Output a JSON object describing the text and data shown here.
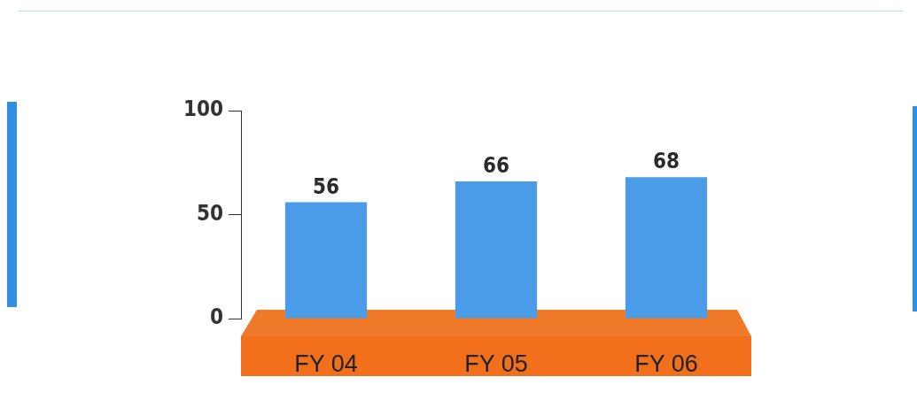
{
  "chart_data": {
    "type": "bar",
    "categories": [
      "FY 04",
      "FY 05",
      "FY 06"
    ],
    "values": [
      56,
      66,
      68
    ],
    "color": "#4a9be8",
    "ylim": [
      0,
      100
    ],
    "yticks": [
      0,
      50,
      100
    ],
    "data_labels": true
  }
}
